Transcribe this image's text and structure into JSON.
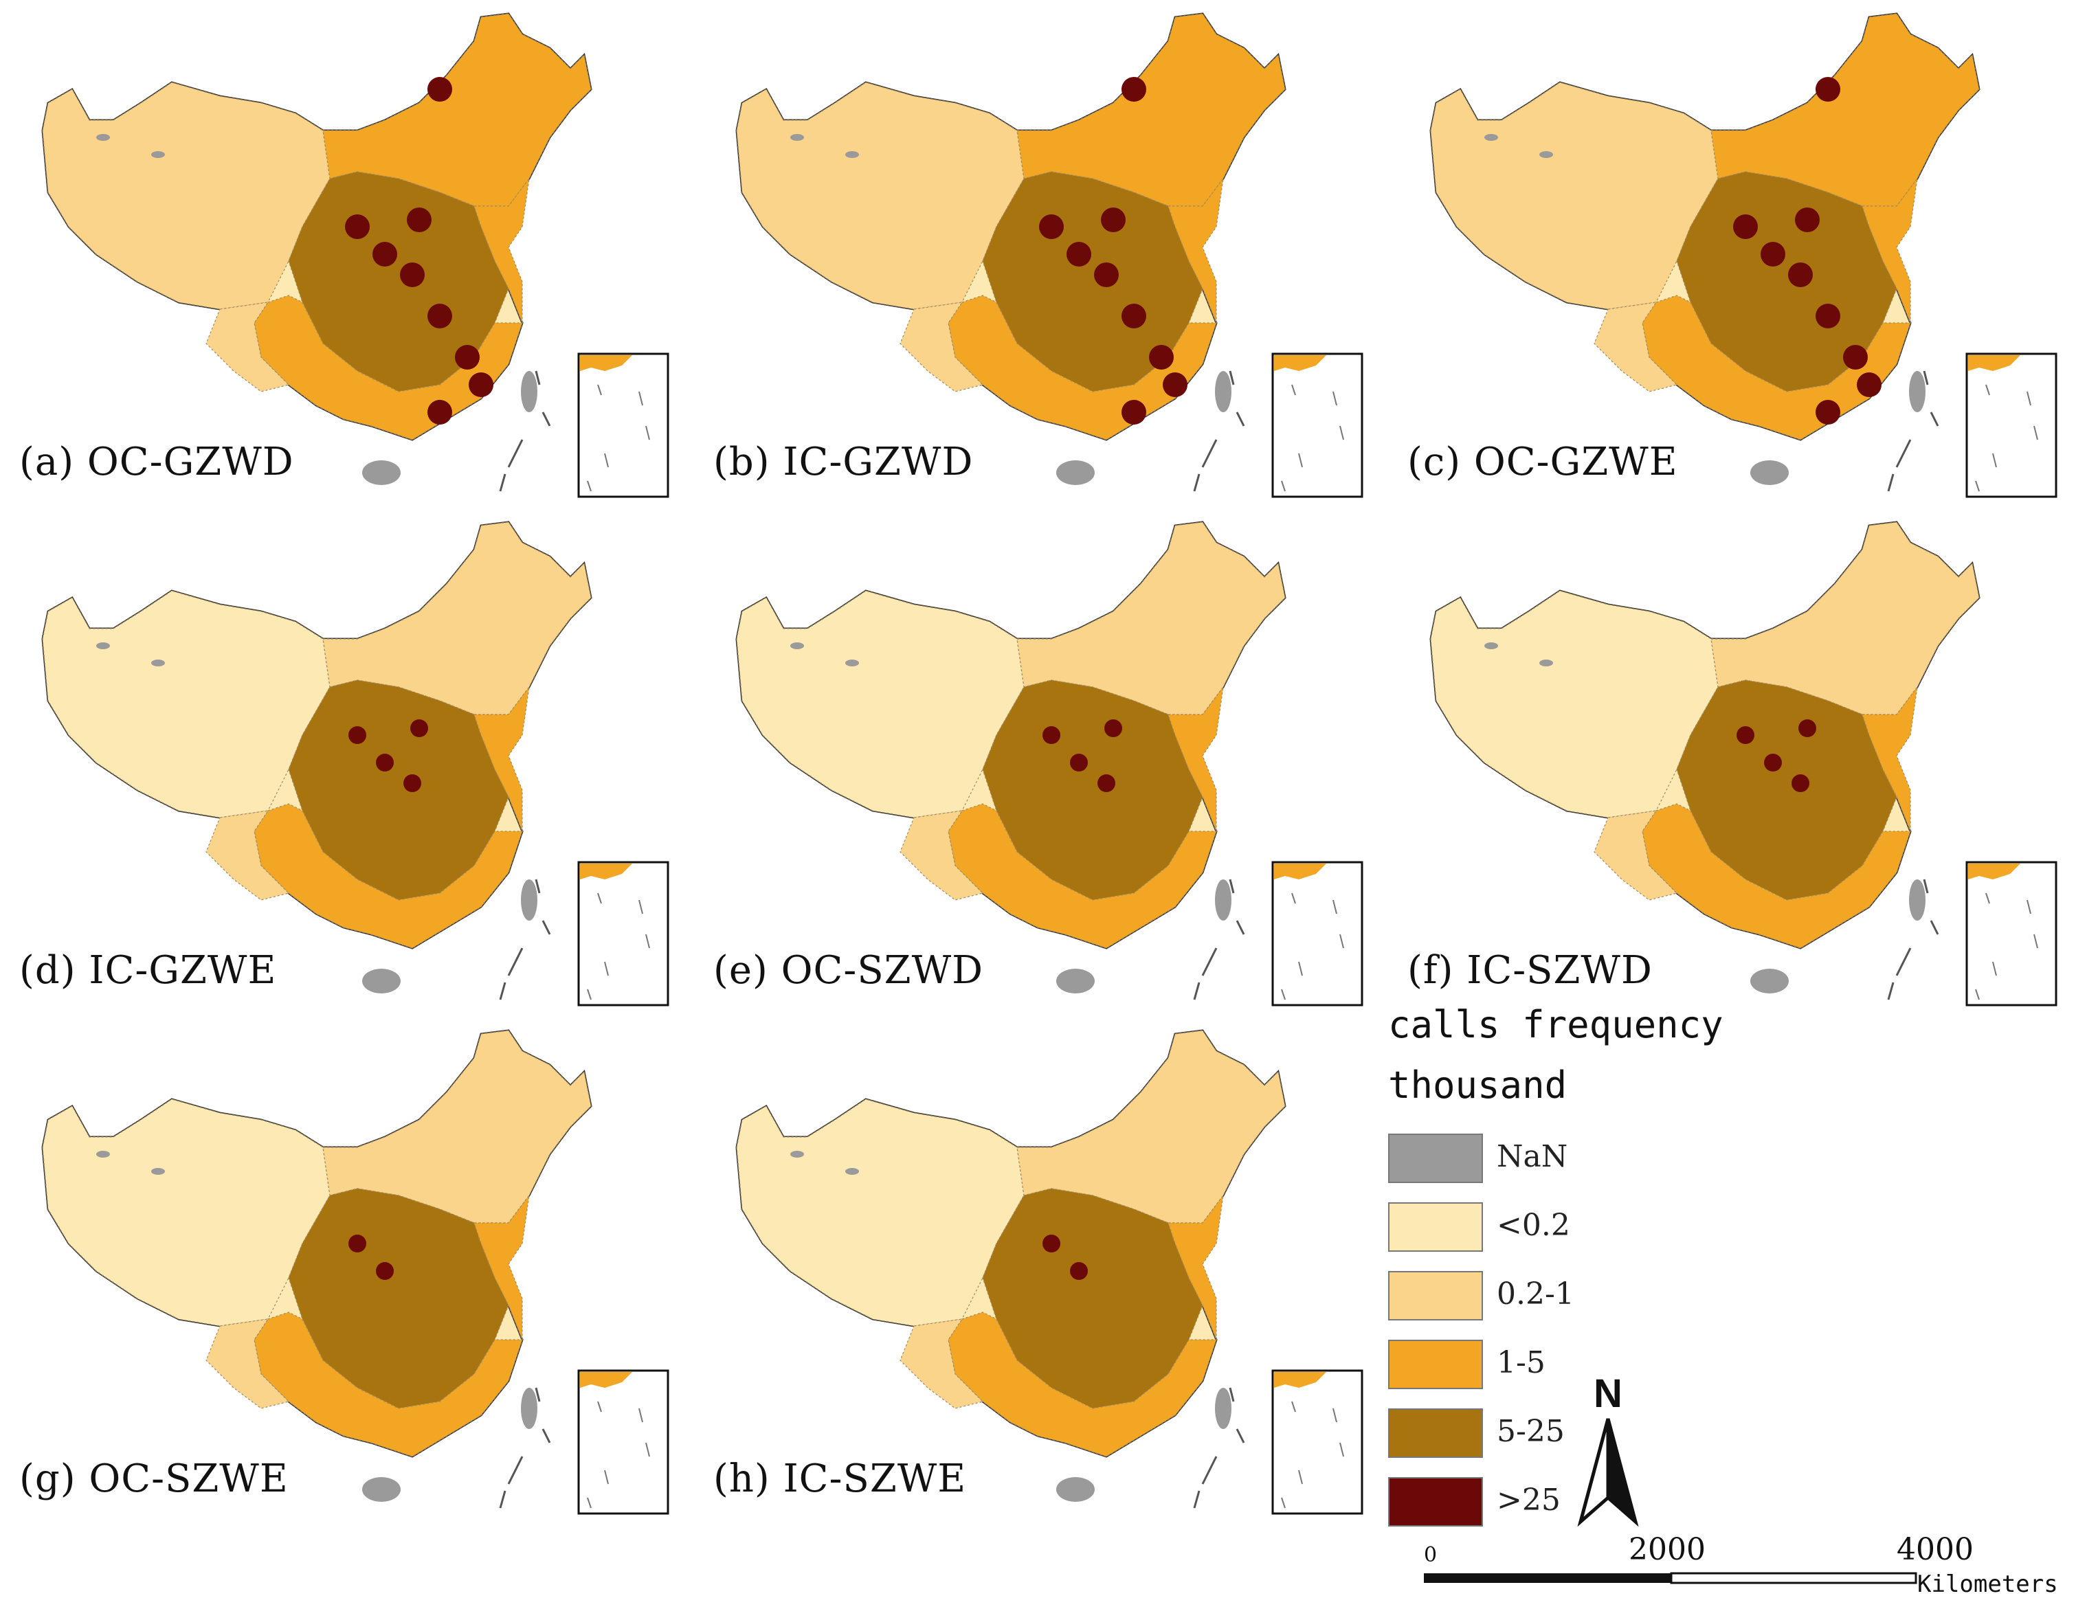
{
  "panels": [
    {
      "caption": "(a) OC-GZWD",
      "levels": {
        "north": "1-5",
        "central": "5-25",
        "south": "1-5",
        "east": "1-5",
        "west": "0.2-1",
        "sw": "0.2-1",
        "hubs": ">25"
      }
    },
    {
      "caption": "(b) IC-GZWD",
      "levels": {
        "north": "1-5",
        "central": "5-25",
        "south": "1-5",
        "east": "1-5",
        "west": "0.2-1",
        "sw": "0.2-1",
        "hubs": ">25"
      }
    },
    {
      "caption": "(c) OC-GZWE",
      "levels": {
        "north": "1-5",
        "central": "5-25",
        "south": "1-5",
        "east": "1-5",
        "west": "0.2-1",
        "sw": "0.2-1",
        "hubs": ">25"
      }
    },
    {
      "caption": "(d) IC-GZWE",
      "levels": {
        "north": "0.2-1",
        "central": "5-25",
        "south": "1-5",
        "east": "1-5",
        "west": "<0.2",
        "sw": "0.2-1",
        "hubs": ">25"
      }
    },
    {
      "caption": "(e) OC-SZWD",
      "levels": {
        "north": "0.2-1",
        "central": "5-25",
        "south": "1-5",
        "east": "1-5",
        "west": "<0.2",
        "sw": "0.2-1",
        "hubs": ">25"
      }
    },
    {
      "caption": "(f) IC-SZWD",
      "levels": {
        "north": "0.2-1",
        "central": "5-25",
        "south": "1-5",
        "east": "1-5",
        "west": "<0.2",
        "sw": "0.2-1",
        "hubs": ">25"
      }
    },
    {
      "caption": "(g) OC-SZWE",
      "levels": {
        "north": "0.2-1",
        "central": "5-25",
        "south": "1-5",
        "east": "1-5",
        "west": "<0.2",
        "sw": "0.2-1",
        "hubs": ">25"
      }
    },
    {
      "caption": "(h) IC-SZWE",
      "levels": {
        "north": "0.2-1",
        "central": "5-25",
        "south": "1-5",
        "east": "1-5",
        "west": "<0.2",
        "sw": "0.2-1",
        "hubs": ">25"
      }
    }
  ],
  "legend": {
    "title_line1": "calls frequency",
    "title_line2": "thousand",
    "classes": [
      {
        "label": "NaN",
        "color": "#9a9a9a"
      },
      {
        "label": "<0.2",
        "color": "#fde9b4"
      },
      {
        "label": "0.2-1",
        "color": "#f9d48a"
      },
      {
        "label": "1-5",
        "color": "#f2a623"
      },
      {
        "label": "5-25",
        "color": "#a8740f"
      },
      {
        "label": ">25",
        "color": "#6b0808"
      }
    ]
  },
  "north_arrow": {
    "label": "N"
  },
  "scale_bar": {
    "ticks": [
      "0",
      "2000",
      "4000"
    ],
    "unit": "Kilometers"
  }
}
